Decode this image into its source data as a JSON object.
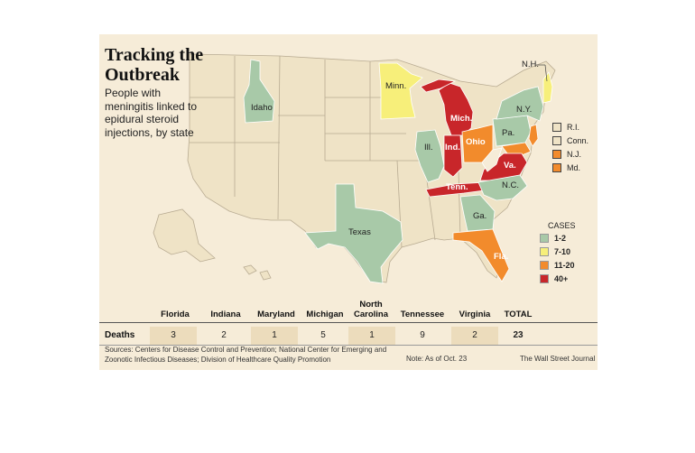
{
  "title": "Tracking the Outbreak",
  "subtitle": "People with meningitis linked to epidural steroid injections, by state",
  "colors": {
    "background": "#f6ecd8",
    "state_default": "#efe3c6",
    "state_border": "#b8ab92",
    "cases_1_2": "#a8c9a8",
    "cases_7_10": "#f7ef7a",
    "cases_11_20": "#f28b2c",
    "cases_40_plus": "#c8262a"
  },
  "map": {
    "state_labels": [
      {
        "name": "Idaho",
        "bucket": "1-2"
      },
      {
        "name": "Minn.",
        "bucket": "7-10"
      },
      {
        "name": "Mich.",
        "bucket": "40+"
      },
      {
        "name": "Ill.",
        "bucket": "1-2"
      },
      {
        "name": "Ind.",
        "bucket": "40+"
      },
      {
        "name": "Ohio",
        "bucket": "11-20"
      },
      {
        "name": "Pa.",
        "bucket": "1-2"
      },
      {
        "name": "N.Y.",
        "bucket": "1-2"
      },
      {
        "name": "N.H.",
        "bucket": "7-10"
      },
      {
        "name": "Va.",
        "bucket": "40+"
      },
      {
        "name": "Tenn.",
        "bucket": "40+"
      },
      {
        "name": "N.C.",
        "bucket": "1-2"
      },
      {
        "name": "Ga.",
        "bucket": "1-2"
      },
      {
        "name": "Fla.",
        "bucket": "11-20"
      },
      {
        "name": "Texas",
        "bucket": "1-2"
      }
    ],
    "small_states": [
      {
        "name": "R.I.",
        "bucket": "none"
      },
      {
        "name": "Conn.",
        "bucket": "none"
      },
      {
        "name": "N.J.",
        "bucket": "11-20"
      },
      {
        "name": "Md.",
        "bucket": "11-20"
      }
    ]
  },
  "legend": {
    "title": "CASES",
    "items": [
      {
        "label": "1-2",
        "color": "#a8c9a8"
      },
      {
        "label": "7-10",
        "color": "#f7ef7a"
      },
      {
        "label": "11-20",
        "color": "#f28b2c"
      },
      {
        "label": "40+",
        "color": "#c8262a"
      }
    ]
  },
  "deaths_table": {
    "row_label": "Deaths",
    "columns": [
      {
        "state": "Florida",
        "deaths": "3"
      },
      {
        "state": "Indiana",
        "deaths": "2"
      },
      {
        "state": "Maryland",
        "deaths": "1"
      },
      {
        "state": "Michigan",
        "deaths": "5"
      },
      {
        "state": "North Carolina",
        "deaths": "1"
      },
      {
        "state": "Tennessee",
        "deaths": "9"
      },
      {
        "state": "Virginia",
        "deaths": "2"
      }
    ],
    "total_label": "TOTAL",
    "total_value": "23"
  },
  "sources": "Sources: Centers for Disease Control and Prevention; National Center for Emerging and Zoonotic Infectious Diseases; Division of Healthcare Quality Promotion",
  "note": "Note: As of Oct. 23",
  "credit": "The Wall Street Journal"
}
